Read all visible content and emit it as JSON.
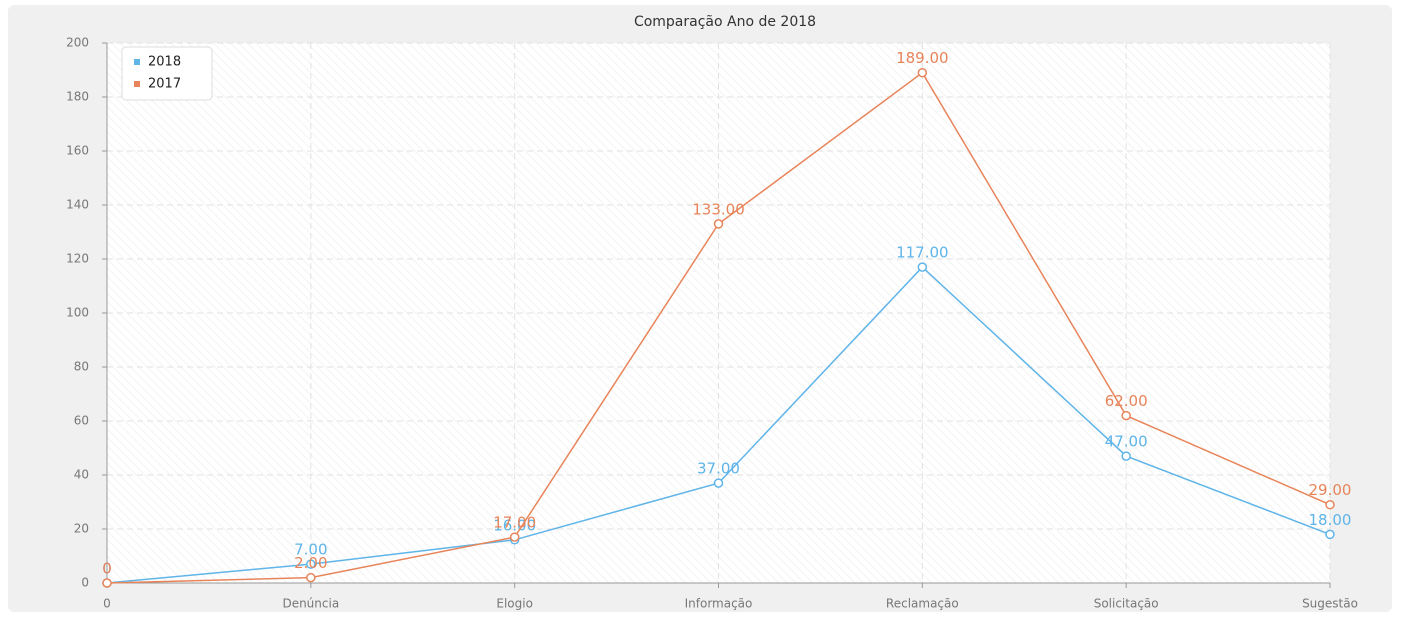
{
  "chart_data": {
    "type": "line",
    "title": "Comparação Ano de 2018",
    "categories": [
      "0",
      "Denúncia",
      "Elogio",
      "Informação",
      "Reclamação",
      "Solicitação",
      "Sugestão"
    ],
    "series": [
      {
        "name": "2018",
        "color": "#5fb4e8",
        "values": [
          0,
          7,
          16,
          37,
          117,
          47,
          18
        ],
        "value_labels": [
          "0",
          "7.00",
          "16.00",
          "37.00",
          "117.00",
          "47.00",
          "18.00"
        ]
      },
      {
        "name": "2017",
        "color": "#e8845a",
        "values": [
          0,
          2,
          17,
          133,
          189,
          62,
          29
        ],
        "value_labels": [
          "0",
          "2.00",
          "17.00",
          "133.00",
          "189.00",
          "62.00",
          "29.00"
        ]
      }
    ],
    "ylim": [
      0,
      200
    ],
    "yticks": [
      0,
      20,
      40,
      60,
      80,
      100,
      120,
      140,
      160,
      180,
      200
    ],
    "grid": true,
    "legend": "upper left"
  }
}
